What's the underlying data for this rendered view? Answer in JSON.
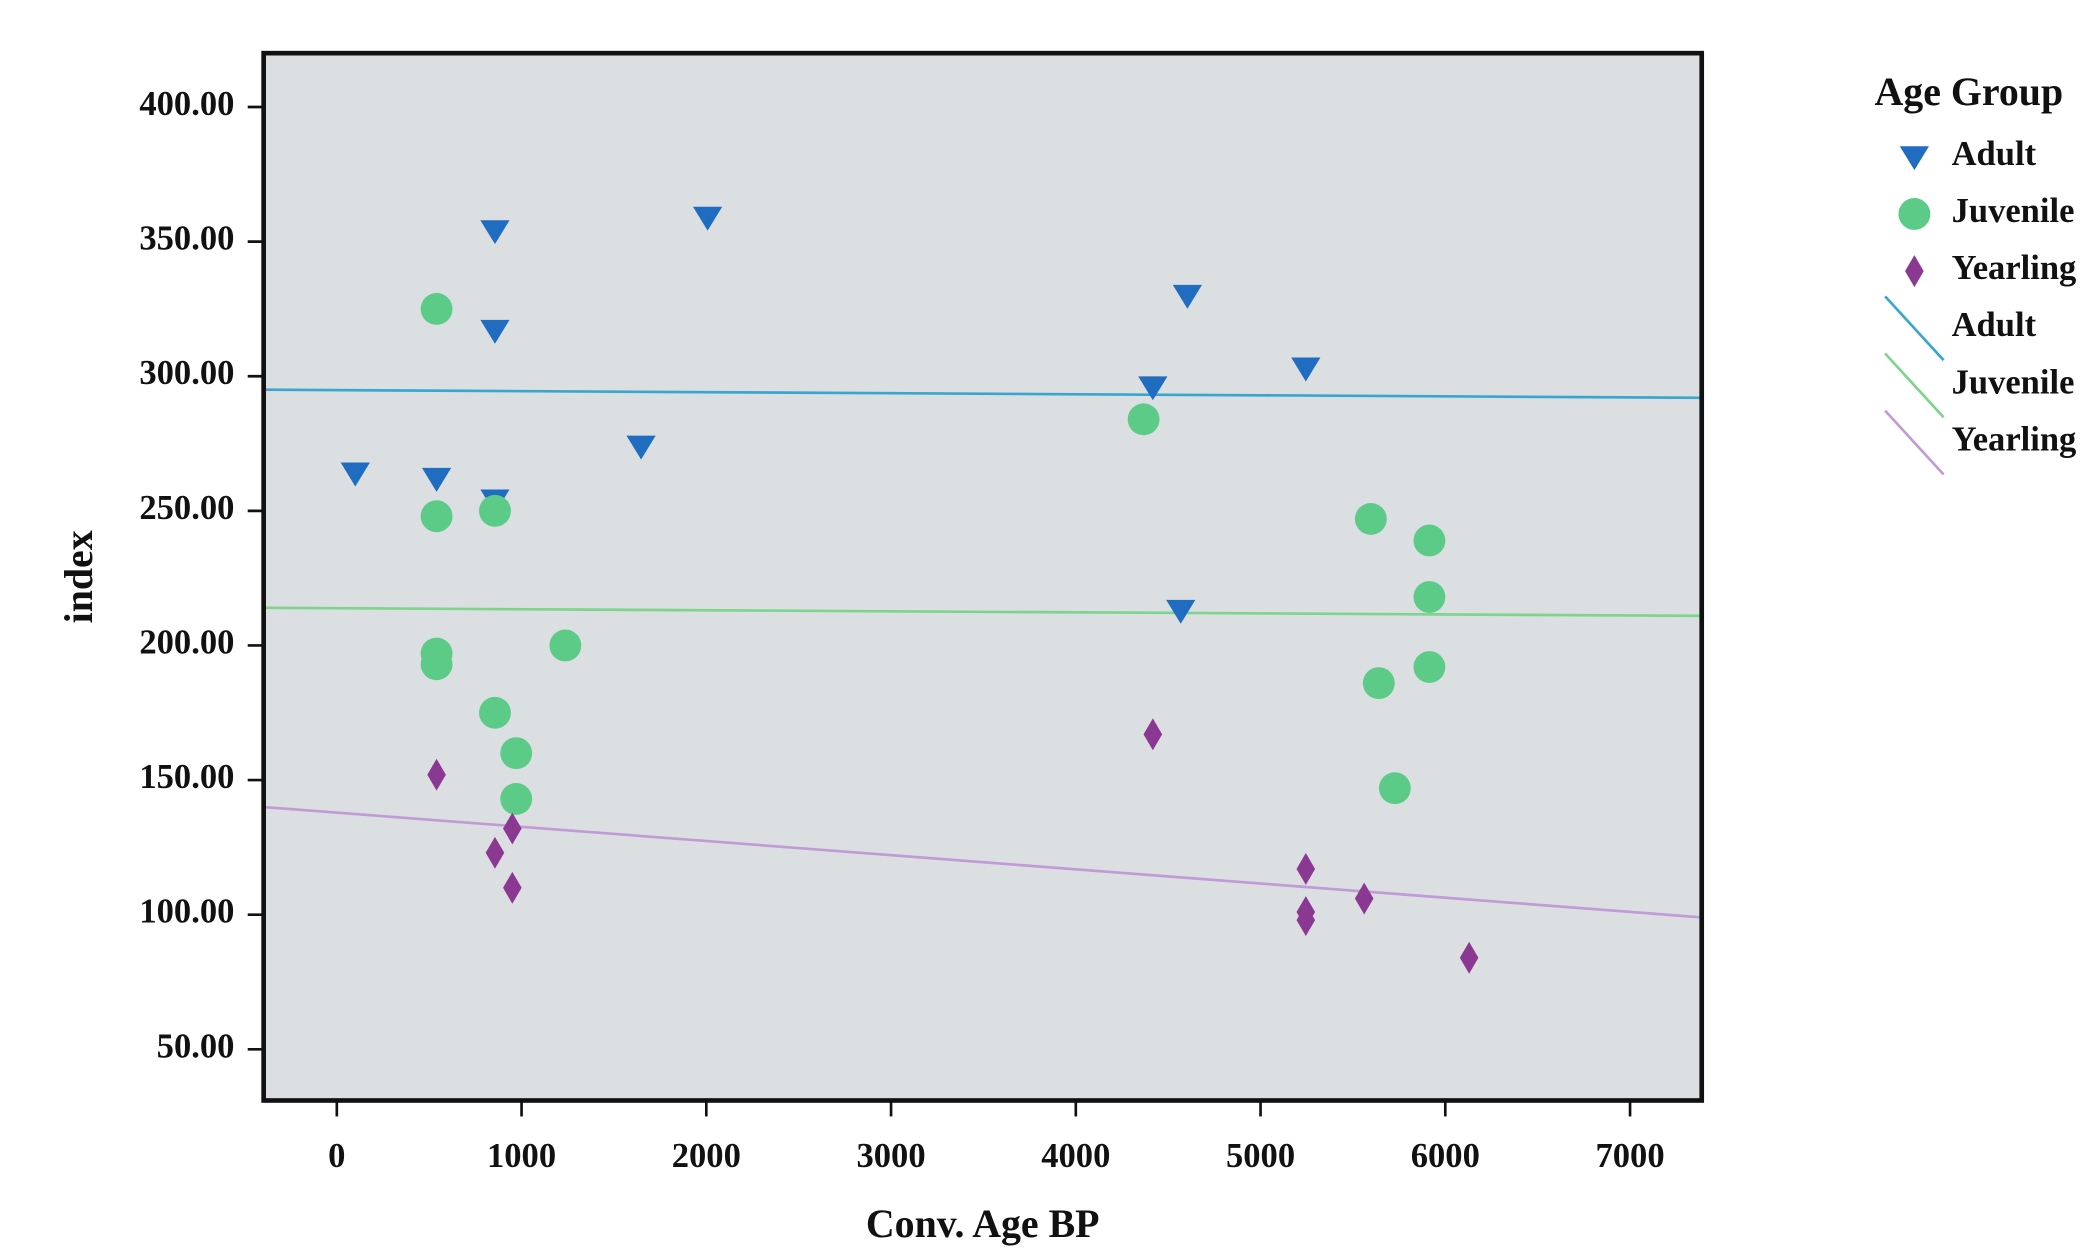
{
  "chart_data": {
    "type": "scatter",
    "xlabel": "Conv. Age BP",
    "ylabel": "index",
    "xlim": [
      -396,
      7388
    ],
    "ylim": [
      31,
      420
    ],
    "xticks": [
      0,
      1000,
      2000,
      3000,
      4000,
      5000,
      6000,
      7000
    ],
    "yticks": [
      {
        "value": 50,
        "label": "50.00"
      },
      {
        "value": 100,
        "label": "100.00"
      },
      {
        "value": 150,
        "label": "150.00"
      },
      {
        "value": 200,
        "label": "200.00"
      },
      {
        "value": 250,
        "label": "250.00"
      },
      {
        "value": 300,
        "label": "300.00"
      },
      {
        "value": 350,
        "label": "350.00"
      },
      {
        "value": 400,
        "label": "400.00"
      }
    ],
    "legend_title": "Age Group",
    "legend": "right",
    "series": [
      {
        "name": "Adult",
        "marker": "triangle-down",
        "color": "#1f6cc0",
        "x": [
          100,
          540,
          856,
          856,
          856,
          1647,
          2007,
          4417,
          4604,
          4568,
          5245
        ],
        "values": [
          264,
          262,
          354,
          317,
          254,
          274,
          359,
          296,
          330,
          213,
          303
        ]
      },
      {
        "name": "Juvenile",
        "marker": "circle",
        "color": "#5ccb88",
        "x": [
          540,
          540,
          856,
          540,
          540,
          856,
          971,
          971,
          1237,
          4367,
          5597,
          5914,
          5914,
          5640,
          5914,
          5727
        ],
        "values": [
          325,
          248,
          250,
          197,
          193,
          175,
          160,
          143,
          200,
          284,
          247,
          239,
          218,
          186,
          192,
          147
        ]
      },
      {
        "name": "Yearling",
        "marker": "diamond",
        "color": "#8b3892",
        "x": [
          540,
          856,
          950,
          950,
          4417,
          5245,
          5245,
          5245,
          5561,
          6129
        ],
        "values": [
          152,
          123,
          132,
          110,
          167,
          117,
          101,
          98,
          106,
          84
        ]
      }
    ],
    "fit_lines": [
      {
        "name": "Adult",
        "color": "#3aa6cf",
        "x": [
          -396,
          7388
        ],
        "values": [
          295,
          292
        ]
      },
      {
        "name": "Juvenile",
        "color": "#7dd48c",
        "x": [
          -396,
          7388
        ],
        "values": [
          214,
          211
        ]
      },
      {
        "name": "Yearling",
        "color": "#c29ad6",
        "x": [
          -396,
          7388
        ],
        "values": [
          140,
          99
        ]
      }
    ]
  }
}
